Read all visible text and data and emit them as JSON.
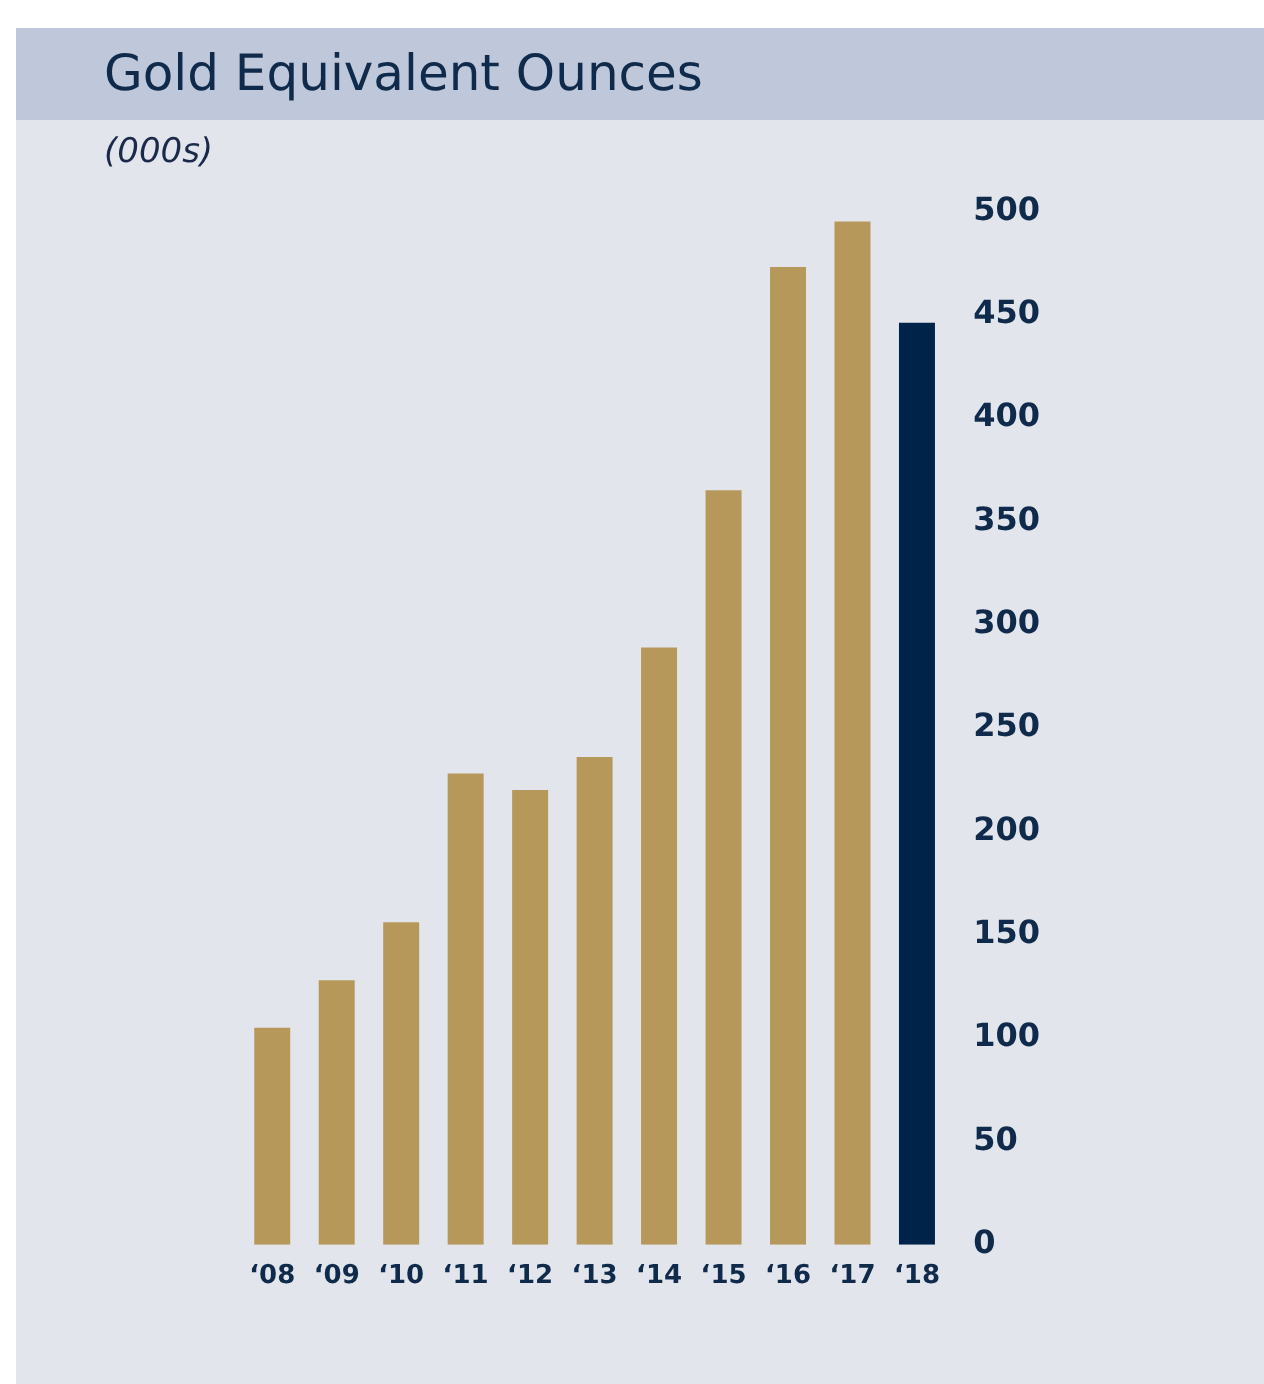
{
  "chart_data": {
    "type": "bar",
    "title": "Gold Equivalent Ounces",
    "subtitle": "(000s)",
    "categories": [
      "‘08",
      "‘09",
      "‘10",
      "‘11",
      "‘12",
      "‘13",
      "‘14",
      "‘15",
      "‘16",
      "‘17",
      "‘18"
    ],
    "values": [
      105,
      128,
      156,
      228,
      220,
      236,
      289,
      365,
      473,
      495,
      446
    ],
    "colors": [
      "#b5985a",
      "#b5985a",
      "#b5985a",
      "#b5985a",
      "#b5985a",
      "#b5985a",
      "#b5985a",
      "#b5985a",
      "#b5985a",
      "#b5985a",
      "#002349"
    ],
    "ylim": [
      0,
      500
    ],
    "yticks": [
      0,
      50,
      100,
      150,
      200,
      250,
      300,
      350,
      400,
      450,
      500
    ],
    "grid": false,
    "legend": false
  }
}
